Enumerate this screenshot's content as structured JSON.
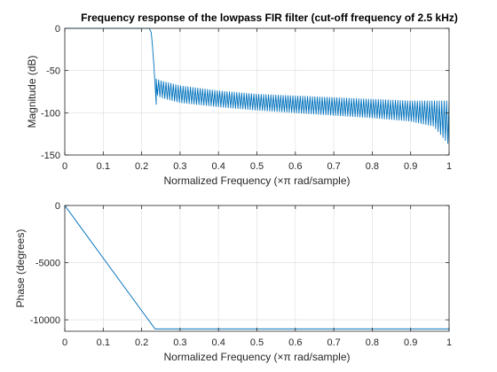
{
  "chart_data": [
    {
      "type": "line",
      "title": "Frequency response of the lowpass FIR filter (cut-off frequency of 2.5 kHz)",
      "xlabel": "Normalized Frequency  (×π rad/sample)",
      "ylabel": "Magnitude (dB)",
      "xlim": [
        0,
        1
      ],
      "ylim": [
        -150,
        0
      ],
      "grid": true,
      "x_ticks": [
        0,
        0.1,
        0.2,
        0.3,
        0.4,
        0.5,
        0.6,
        0.7,
        0.8,
        0.9,
        1
      ],
      "x_tick_labels": [
        "0",
        "0.1",
        "0.2",
        "0.3",
        "0.4",
        "0.5",
        "0.6",
        "0.7",
        "0.8",
        "0.9",
        "1"
      ],
      "y_ticks": [
        0,
        -50,
        -100,
        -150
      ],
      "y_tick_labels": [
        "0",
        "-50",
        "-100",
        "-150"
      ],
      "series": [
        {
          "color": "#0072BD",
          "passband": {
            "x": [
              0,
              0.22
            ],
            "y": [
              0,
              0
            ]
          },
          "transition": {
            "x": [
              0.22,
              0.225,
              0.228,
              0.232,
              0.236,
              0.238
            ],
            "y": [
              0,
              -5,
              -20,
              -45,
              -75,
              -90
            ]
          },
          "stopband_peak_envelope": {
            "x": [
              0.238,
              0.25,
              0.3,
              0.4,
              0.5,
              0.6,
              0.7,
              0.8,
              0.9,
              0.96,
              1.0
            ],
            "y": [
              -60,
              -62,
              -68,
              -74,
              -78,
              -80,
              -82,
              -84,
              -86,
              -86,
              -86
            ]
          },
          "stopband_trough_envelope": {
            "x": [
              0.238,
              0.25,
              0.3,
              0.4,
              0.5,
              0.6,
              0.7,
              0.8,
              0.9,
              0.96,
              1.0
            ],
            "y": [
              -78,
              -82,
              -88,
              -93,
              -97,
              -100,
              -103,
              -106,
              -110,
              -116,
              -138
            ]
          },
          "stopband_ripple_count": 120
        }
      ]
    },
    {
      "type": "line",
      "title": "",
      "xlabel": "Normalized Frequency  (×π rad/sample)",
      "ylabel": "Phase (degrees)",
      "xlim": [
        0,
        1
      ],
      "ylim": [
        -11000,
        0
      ],
      "grid": true,
      "x_ticks": [
        0,
        0.1,
        0.2,
        0.3,
        0.4,
        0.5,
        0.6,
        0.7,
        0.8,
        0.9,
        1
      ],
      "x_tick_labels": [
        "0",
        "0.1",
        "0.2",
        "0.3",
        "0.4",
        "0.5",
        "0.6",
        "0.7",
        "0.8",
        "0.9",
        "1"
      ],
      "y_ticks": [
        0,
        -5000,
        -10000
      ],
      "y_tick_labels": [
        "0",
        "-5000",
        "-10000"
      ],
      "series": [
        {
          "color": "#0072BD",
          "x": [
            0,
            0.1,
            0.2,
            0.235,
            0.3,
            0.4,
            0.5,
            0.6,
            0.7,
            0.8,
            0.9,
            1.0
          ],
          "y": [
            0,
            -4600,
            -9200,
            -10800,
            -10800,
            -10800,
            -10800,
            -10800,
            -10800,
            -10800,
            -10800,
            -10800
          ]
        }
      ]
    }
  ]
}
